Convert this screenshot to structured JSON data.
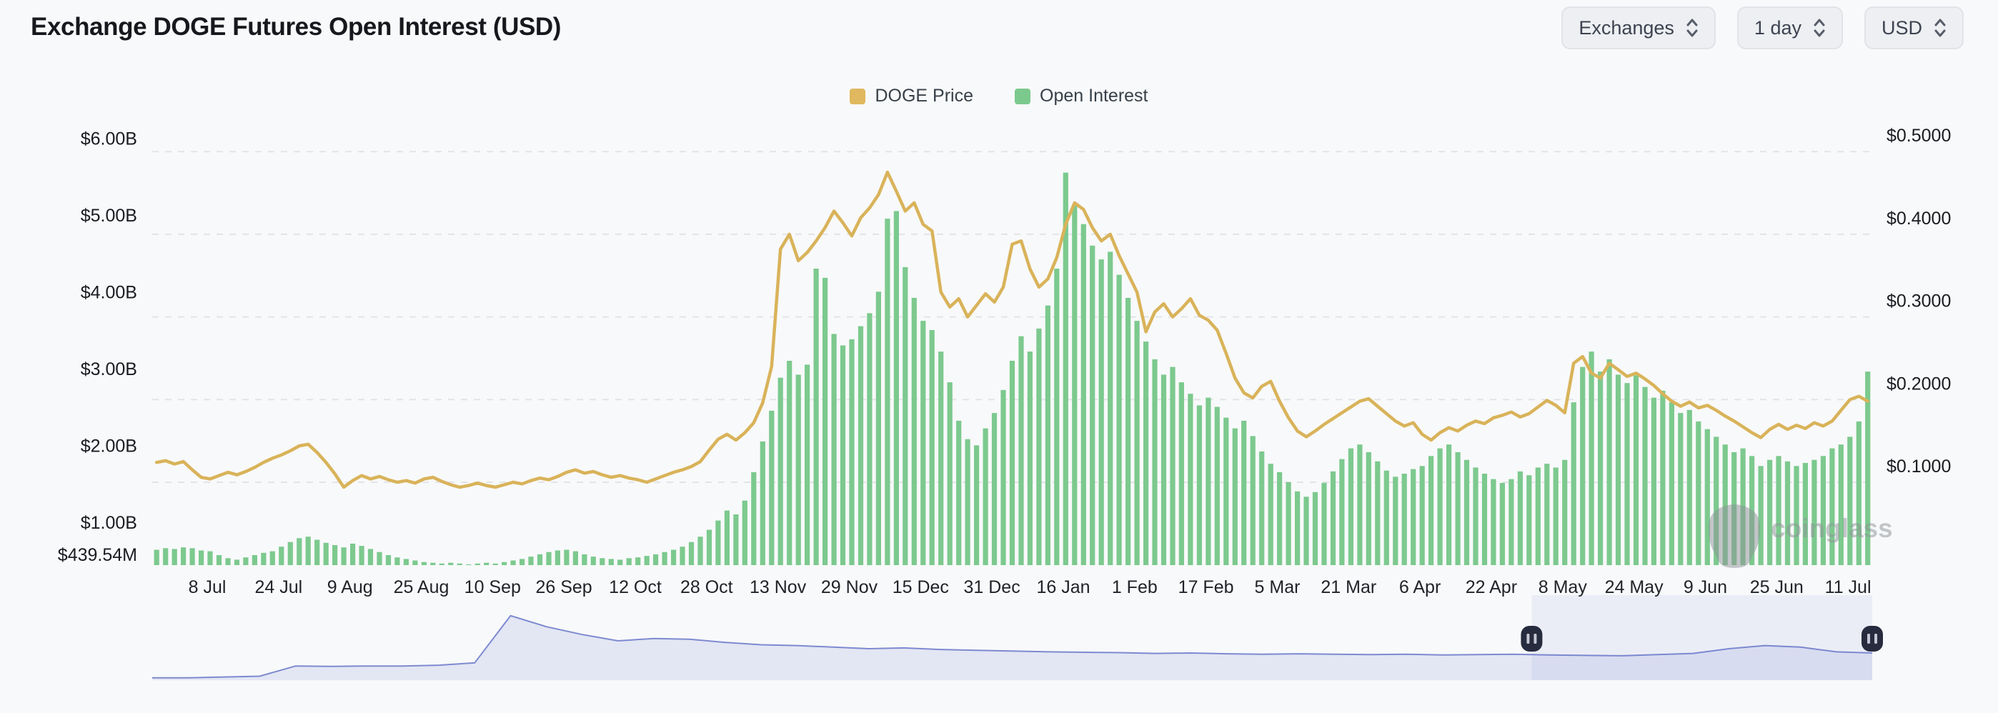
{
  "header": {
    "title": "Exchange DOGE Futures Open Interest (USD)",
    "controls": [
      {
        "label": "Exchanges"
      },
      {
        "label": "1 day"
      },
      {
        "label": "USD"
      }
    ]
  },
  "legend": {
    "items": [
      {
        "label": "DOGE Price",
        "color": "#e0b85f"
      },
      {
        "label": "Open Interest",
        "color": "#7cc98e"
      }
    ]
  },
  "watermark": {
    "text": "coinglass"
  },
  "colors": {
    "background": "#f8f9fa",
    "gridline": "#e3e4e8",
    "bar_green": "#7cc98e",
    "line_gold": "#d9b35a",
    "navigator_line": "#7d8ad0",
    "navigator_fill": "#e3e6f3",
    "navigator_selection_tint": "rgba(110,125,210,0.09)",
    "navigator_handle": "#262b3e"
  },
  "chart_data": {
    "type": "mixed",
    "title": "Exchange DOGE Futures Open Interest (USD)",
    "interval": "1 day",
    "x_tick_labels": [
      "8 Jul",
      "24 Jul",
      "9 Aug",
      "25 Aug",
      "10 Sep",
      "26 Sep",
      "12 Oct",
      "28 Oct",
      "13 Nov",
      "29 Nov",
      "15 Dec",
      "31 Dec",
      "16 Jan",
      "1 Feb",
      "17 Feb",
      "5 Mar",
      "21 Mar",
      "6 Apr",
      "22 Apr",
      "8 May",
      "24 May",
      "9 Jun",
      "25 Jun",
      "11 Jul"
    ],
    "left_axis": {
      "name": "Open Interest (USD)",
      "tick_labels": [
        "$6.00B",
        "$5.00B",
        "$4.00B",
        "$3.00B",
        "$2.00B",
        "$1.00B",
        "$439.54M"
      ],
      "tick_values_billions": [
        6,
        5,
        4,
        3,
        2,
        1,
        0.43954
      ],
      "min_billions": 0.43954,
      "gridlines": false
    },
    "right_axis": {
      "name": "DOGE Price",
      "tick_labels": [
        "$0.5000",
        "$0.4000",
        "$0.3000",
        "$0.2000",
        "$0.1000"
      ],
      "tick_values": [
        0.5,
        0.4,
        0.3,
        0.2,
        0.1
      ],
      "gridlines": true,
      "grid_style": "dashed"
    },
    "series": [
      {
        "name": "DOGE Price",
        "type": "line",
        "axis": "right",
        "color": "#d9b35a",
        "values": [
          0.124,
          0.126,
          0.122,
          0.125,
          0.115,
          0.106,
          0.104,
          0.108,
          0.112,
          0.109,
          0.113,
          0.118,
          0.124,
          0.129,
          0.133,
          0.138,
          0.144,
          0.146,
          0.136,
          0.124,
          0.11,
          0.094,
          0.102,
          0.108,
          0.104,
          0.107,
          0.103,
          0.1,
          0.102,
          0.099,
          0.104,
          0.106,
          0.101,
          0.097,
          0.094,
          0.096,
          0.099,
          0.096,
          0.094,
          0.097,
          0.1,
          0.098,
          0.102,
          0.105,
          0.103,
          0.107,
          0.112,
          0.115,
          0.111,
          0.113,
          0.109,
          0.106,
          0.108,
          0.105,
          0.103,
          0.1,
          0.104,
          0.108,
          0.112,
          0.115,
          0.119,
          0.125,
          0.139,
          0.152,
          0.158,
          0.151,
          0.16,
          0.172,
          0.196,
          0.24,
          0.382,
          0.4,
          0.368,
          0.378,
          0.392,
          0.408,
          0.428,
          0.414,
          0.398,
          0.42,
          0.432,
          0.448,
          0.475,
          0.452,
          0.428,
          0.438,
          0.412,
          0.404,
          0.33,
          0.312,
          0.322,
          0.3,
          0.314,
          0.328,
          0.318,
          0.336,
          0.388,
          0.392,
          0.358,
          0.336,
          0.346,
          0.372,
          0.412,
          0.438,
          0.43,
          0.408,
          0.392,
          0.4,
          0.374,
          0.352,
          0.33,
          0.282,
          0.306,
          0.316,
          0.3,
          0.31,
          0.322,
          0.302,
          0.296,
          0.284,
          0.256,
          0.226,
          0.208,
          0.202,
          0.216,
          0.222,
          0.198,
          0.178,
          0.162,
          0.155,
          0.162,
          0.17,
          0.177,
          0.184,
          0.191,
          0.198,
          0.201,
          0.192,
          0.183,
          0.174,
          0.168,
          0.172,
          0.158,
          0.151,
          0.16,
          0.166,
          0.162,
          0.169,
          0.174,
          0.171,
          0.178,
          0.181,
          0.185,
          0.179,
          0.183,
          0.191,
          0.199,
          0.193,
          0.184,
          0.244,
          0.252,
          0.232,
          0.226,
          0.244,
          0.236,
          0.228,
          0.232,
          0.225,
          0.217,
          0.207,
          0.198,
          0.192,
          0.197,
          0.19,
          0.193,
          0.187,
          0.18,
          0.174,
          0.167,
          0.16,
          0.154,
          0.164,
          0.17,
          0.164,
          0.169,
          0.165,
          0.172,
          0.168,
          0.174,
          0.187,
          0.2,
          0.204,
          0.198
        ]
      },
      {
        "name": "Open Interest",
        "type": "bar",
        "axis": "left",
        "unit": "billions USD",
        "color": "#7cc98e",
        "values": [
          0.64,
          0.66,
          0.65,
          0.67,
          0.66,
          0.63,
          0.62,
          0.57,
          0.53,
          0.51,
          0.54,
          0.57,
          0.6,
          0.62,
          0.68,
          0.74,
          0.79,
          0.81,
          0.77,
          0.73,
          0.7,
          0.67,
          0.72,
          0.69,
          0.65,
          0.61,
          0.57,
          0.54,
          0.52,
          0.5,
          0.48,
          0.47,
          0.46,
          0.47,
          0.46,
          0.45,
          0.46,
          0.47,
          0.46,
          0.48,
          0.5,
          0.52,
          0.55,
          0.58,
          0.61,
          0.63,
          0.64,
          0.62,
          0.58,
          0.55,
          0.53,
          0.52,
          0.51,
          0.53,
          0.54,
          0.56,
          0.58,
          0.61,
          0.64,
          0.68,
          0.74,
          0.81,
          0.9,
          1.02,
          1.15,
          1.1,
          1.28,
          1.65,
          2.05,
          2.45,
          2.88,
          3.1,
          2.92,
          3.05,
          4.3,
          4.18,
          3.45,
          3.3,
          3.38,
          3.55,
          3.72,
          4.0,
          4.95,
          5.05,
          4.32,
          3.92,
          3.62,
          3.5,
          3.22,
          2.82,
          2.32,
          2.08,
          2.0,
          2.22,
          2.42,
          2.72,
          3.1,
          3.42,
          3.22,
          3.52,
          3.82,
          4.3,
          5.55,
          5.12,
          4.88,
          4.6,
          4.42,
          4.52,
          4.22,
          3.92,
          3.62,
          3.35,
          3.12,
          2.92,
          3.02,
          2.82,
          2.67,
          2.52,
          2.62,
          2.5,
          2.36,
          2.22,
          2.32,
          2.12,
          1.92,
          1.76,
          1.65,
          1.52,
          1.4,
          1.33,
          1.39,
          1.51,
          1.66,
          1.82,
          1.96,
          2.01,
          1.91,
          1.79,
          1.67,
          1.59,
          1.63,
          1.69,
          1.73,
          1.86,
          1.96,
          2.01,
          1.91,
          1.81,
          1.71,
          1.63,
          1.56,
          1.51,
          1.56,
          1.66,
          1.61,
          1.71,
          1.76,
          1.71,
          1.81,
          2.56,
          3.02,
          3.22,
          2.96,
          3.12,
          2.92,
          2.81,
          2.91,
          2.76,
          2.62,
          2.71,
          2.56,
          2.42,
          2.46,
          2.31,
          2.21,
          2.11,
          2.01,
          1.91,
          1.96,
          1.86,
          1.73,
          1.81,
          1.86,
          1.79,
          1.73,
          1.77,
          1.81,
          1.86,
          1.96,
          2.01,
          2.11,
          2.31,
          2.96
        ]
      }
    ],
    "navigator": {
      "description": "full-history open interest minimap",
      "values": [
        0.03,
        0.03,
        0.04,
        0.05,
        0.18,
        0.175,
        0.18,
        0.18,
        0.19,
        0.22,
        0.82,
        0.68,
        0.58,
        0.5,
        0.53,
        0.52,
        0.48,
        0.45,
        0.44,
        0.42,
        0.4,
        0.41,
        0.39,
        0.38,
        0.37,
        0.36,
        0.355,
        0.35,
        0.34,
        0.345,
        0.335,
        0.33,
        0.335,
        0.33,
        0.325,
        0.33,
        0.32,
        0.325,
        0.33,
        0.32,
        0.315,
        0.31,
        0.325,
        0.34,
        0.4,
        0.44,
        0.42,
        0.36,
        0.345
      ],
      "selection": {
        "start_fraction": 0.802,
        "end_fraction": 1.0
      }
    }
  }
}
